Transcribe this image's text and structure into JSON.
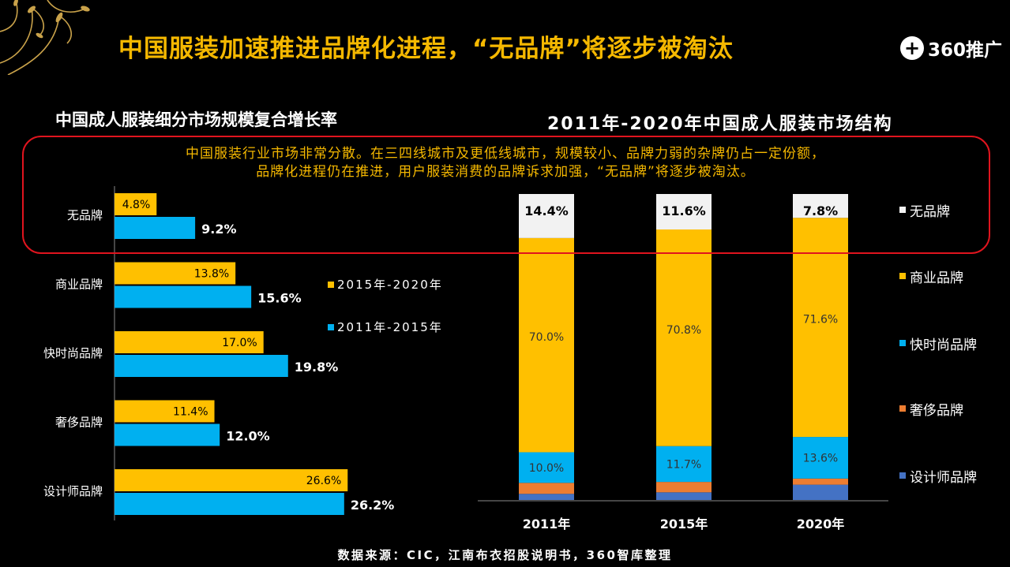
{
  "header": {
    "title": "中国服装加速推进品牌化进程，“无品牌”将逐步被淘汰",
    "logo_text": "360推广",
    "logo_icon": "plus-circle-icon"
  },
  "callout": {
    "line1": "中国服装行业市场非常分散。在三四线城市及更低线城市，规模较小、品牌力弱的杂牌仍占一定份额，",
    "line2": "品牌化进程仍在推进，用户服装消费的品牌诉求加强，“无品牌”将逐步被淘汰。"
  },
  "source": "数据来源：CIC，江南布衣招股说明书，360智库整理",
  "colors": {
    "background": "#000000",
    "accent": "#f5b800",
    "series_2015_2020": "#ffc000",
    "series_2011_2015": "#00b0f0",
    "unbranded": "#f2f2f2",
    "commercial": "#ffc000",
    "fast_fashion": "#00b0f0",
    "luxury": "#ed7d31",
    "designer": "#4472c4",
    "callout_border": "#e0141e"
  },
  "chart_data": [
    {
      "type": "bar",
      "orientation": "horizontal",
      "title": "中国成人服装细分市场规模复合增长率",
      "categories": [
        "无品牌",
        "商业品牌",
        "快时尚品牌",
        "奢侈品牌",
        "设计师品牌"
      ],
      "series": [
        {
          "name": "2015年-2020年",
          "values": [
            4.8,
            13.8,
            17.0,
            11.4,
            26.6
          ],
          "labels": [
            "4.8%",
            "13.8%",
            "17.0%",
            "11.4%",
            "26.6%"
          ]
        },
        {
          "name": "2011年-2015年",
          "values": [
            9.2,
            15.6,
            19.8,
            12.0,
            26.2
          ],
          "labels": [
            "9.2%",
            "15.6%",
            "19.8%",
            "12.0%",
            "26.2%"
          ]
        }
      ],
      "legend_position": "right"
    },
    {
      "type": "bar",
      "stacked": true,
      "percent": true,
      "title": "2011年-2020年中国成人服装市场结构",
      "categories": [
        "2011年",
        "2015年",
        "2020年"
      ],
      "series": [
        {
          "name": "设计师品牌",
          "values": [
            2.0,
            2.5,
            5.0
          ],
          "labels": [
            "",
            "",
            ""
          ]
        },
        {
          "name": "奢侈品牌",
          "values": [
            3.6,
            3.4,
            2.0
          ],
          "labels": [
            "",
            "",
            ""
          ]
        },
        {
          "name": "快时尚品牌",
          "values": [
            10.0,
            11.7,
            13.6
          ],
          "labels": [
            "10.0%",
            "11.7%",
            "13.6%"
          ]
        },
        {
          "name": "商业品牌",
          "values": [
            70.0,
            70.8,
            71.6
          ],
          "labels": [
            "70.0%",
            "70.8%",
            "71.6%"
          ]
        },
        {
          "name": "无品牌",
          "values": [
            14.4,
            11.6,
            7.8
          ],
          "labels": [
            "14.4%",
            "11.6%",
            "7.8%"
          ]
        }
      ],
      "legend_order": [
        "无品牌",
        "商业品牌",
        "快时尚品牌",
        "奢侈品牌",
        "设计师品牌"
      ],
      "legend_position": "right",
      "ylim": [
        0,
        100
      ]
    }
  ]
}
